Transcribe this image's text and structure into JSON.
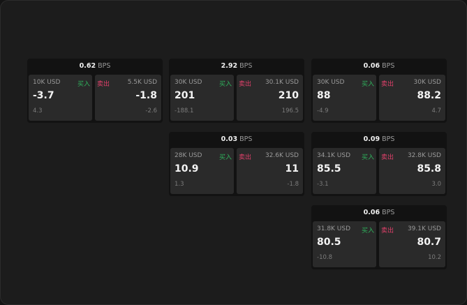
{
  "unit": "BPS",
  "buy_label": "买入",
  "sell_label": "卖出",
  "colors": {
    "buy": "#2fb35c",
    "sell": "#e0406a",
    "background": "#1c1c1c",
    "card": "#2a2a2a"
  },
  "widgets": [
    {
      "spread": "0.62",
      "bid": {
        "size": "10K USD",
        "price": "-3.7",
        "change": "4.3"
      },
      "ask": {
        "size": "5.5K USD",
        "price": "-1.8",
        "change": "-2.6"
      }
    },
    {
      "spread": "2.92",
      "bid": {
        "size": "30K USD",
        "price": "201",
        "change": "-188.1"
      },
      "ask": {
        "size": "30.1K USD",
        "price": "210",
        "change": "196.5"
      }
    },
    {
      "spread": "0.06",
      "bid": {
        "size": "30K USD",
        "price": "88",
        "change": "-4.9"
      },
      "ask": {
        "size": "30K USD",
        "price": "88.2",
        "change": "4.7"
      }
    },
    {
      "spread": "0.03",
      "bid": {
        "size": "28K USD",
        "price": "10.9",
        "change": "1.3"
      },
      "ask": {
        "size": "32.6K USD",
        "price": "11",
        "change": "-1.8"
      }
    },
    {
      "spread": "0.09",
      "bid": {
        "size": "34.1K USD",
        "price": "85.5",
        "change": "-3.1"
      },
      "ask": {
        "size": "32.8K USD",
        "price": "85.8",
        "change": "3.0"
      }
    },
    {
      "spread": "0.06",
      "bid": {
        "size": "31.8K USD",
        "price": "80.5",
        "change": "-10.8"
      },
      "ask": {
        "size": "39.1K USD",
        "price": "80.7",
        "change": "10.2"
      }
    }
  ]
}
